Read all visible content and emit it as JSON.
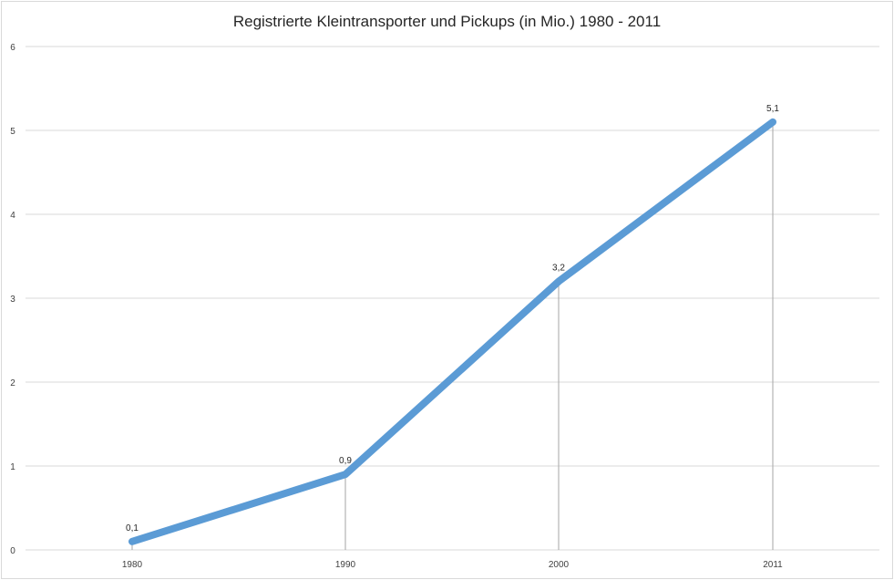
{
  "chart_data": {
    "type": "line",
    "title": "Registrierte Kleintransporter und Pickups (in Mio.) 1980 - 2011",
    "xlabel": "",
    "ylabel": "",
    "categories": [
      "1980",
      "1990",
      "2000",
      "2011"
    ],
    "series": [
      {
        "values": [
          0.1,
          0.9,
          3.2,
          5.1
        ]
      }
    ],
    "data_labels": [
      "0,1",
      "0,9",
      "3,2",
      "5,1"
    ],
    "ylim": [
      0,
      6
    ],
    "yticks": [
      "0",
      "1",
      "2",
      "3",
      "4",
      "5",
      "6"
    ],
    "grid": true,
    "drop_lines": true,
    "legend": "none",
    "line_color": "#5b9bd5",
    "grid_color": "#d9d9d9",
    "drop_line_color": "#a6a6a6"
  }
}
